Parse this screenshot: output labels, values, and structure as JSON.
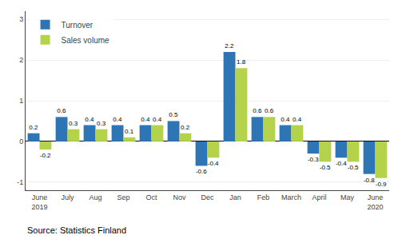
{
  "chart_data": {
    "type": "bar",
    "categories": [
      "June\n2019",
      "July",
      "Aug",
      "Sep",
      "Oct",
      "Nov",
      "Dec",
      "Jan",
      "Feb",
      "March",
      "April",
      "May",
      "June\n2020"
    ],
    "series": [
      {
        "name": "Turnover",
        "color": "#2e75b6",
        "values": [
          0.2,
          0.6,
          0.4,
          0.4,
          0.4,
          0.5,
          -0.6,
          2.2,
          0.6,
          0.4,
          -0.3,
          -0.4,
          -0.8
        ]
      },
      {
        "name": "Sales volume",
        "color": "#b5d34a",
        "values": [
          -0.2,
          0.3,
          0.3,
          0.1,
          0.4,
          0.2,
          -0.4,
          1.8,
          0.6,
          0.4,
          -0.5,
          -0.5,
          -0.9
        ]
      }
    ],
    "ylim": [
      -1.2,
      3.2
    ],
    "yticks": [
      -1,
      0,
      1,
      2,
      3
    ],
    "grid": true,
    "legend": "upper left",
    "data_labels": true,
    "annotations": [
      "Source: Statistics Finland"
    ]
  }
}
